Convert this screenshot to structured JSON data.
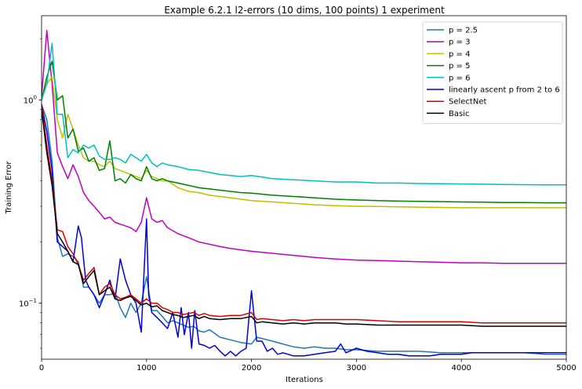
{
  "chart_data": {
    "type": "line",
    "title": "Example 6.2.1   l2-errors (10 dims, 100 points)  1 experiment",
    "xlabel": "Iterations",
    "ylabel": "Training Error",
    "xscale": "linear",
    "yscale": "log",
    "xlim": [
      0,
      5000
    ],
    "ylim": [
      0.053,
      2.6
    ],
    "xticks": [
      0,
      1000,
      2000,
      3000,
      4000,
      5000
    ],
    "xtick_labels": [
      "0",
      "1000",
      "2000",
      "3000",
      "4000",
      "5000"
    ],
    "yticks": [
      1,
      0.1
    ],
    "ytick_labels": [
      {
        "base": "10",
        "exp": "0"
      },
      {
        "base": "10",
        "exp": "−1"
      }
    ],
    "legend_position": "top-right",
    "series": [
      {
        "name": "p = 2.5",
        "color": "#1f77b4",
        "x": [
          0,
          50,
          100,
          150,
          200,
          250,
          300,
          350,
          400,
          450,
          500,
          550,
          600,
          650,
          700,
          750,
          800,
          850,
          900,
          950,
          1000,
          1050,
          1100,
          1150,
          1200,
          1250,
          1300,
          1350,
          1400,
          1450,
          1500,
          1550,
          1600,
          1700,
          1800,
          1900,
          2000,
          2050,
          2100,
          2200,
          2300,
          2400,
          2500,
          2600,
          2700,
          2800,
          2900,
          3000,
          3200,
          3400,
          3600,
          3800,
          4000,
          4200,
          4400,
          4600,
          4800,
          5000
        ],
        "y": [
          0.95,
          0.8,
          0.5,
          0.21,
          0.17,
          0.175,
          0.17,
          0.16,
          0.12,
          0.12,
          0.11,
          0.1,
          0.11,
          0.11,
          0.112,
          0.095,
          0.085,
          0.1,
          0.09,
          0.1,
          0.135,
          0.092,
          0.092,
          0.086,
          0.08,
          0.082,
          0.08,
          0.078,
          0.076,
          0.077,
          0.073,
          0.072,
          0.074,
          0.068,
          0.066,
          0.064,
          0.063,
          0.068,
          0.067,
          0.065,
          0.063,
          0.061,
          0.06,
          0.061,
          0.06,
          0.06,
          0.059,
          0.059,
          0.058,
          0.058,
          0.058,
          0.057,
          0.057,
          0.057,
          0.057,
          0.057,
          0.056,
          0.056
        ]
      },
      {
        "name": "p = 3",
        "color": "#bf00bf",
        "x": [
          0,
          50,
          100,
          150,
          200,
          250,
          300,
          350,
          400,
          450,
          500,
          550,
          600,
          650,
          700,
          750,
          800,
          850,
          900,
          950,
          1000,
          1050,
          1100,
          1150,
          1200,
          1300,
          1400,
          1500,
          1600,
          1700,
          1800,
          1900,
          2000,
          2200,
          2400,
          2600,
          2800,
          3000,
          3200,
          3400,
          3600,
          3800,
          4000,
          4200,
          4400,
          4600,
          4800,
          5000
        ],
        "y": [
          1.05,
          2.2,
          1.2,
          0.55,
          0.47,
          0.41,
          0.48,
          0.42,
          0.35,
          0.32,
          0.3,
          0.28,
          0.26,
          0.265,
          0.25,
          0.245,
          0.24,
          0.235,
          0.225,
          0.25,
          0.33,
          0.26,
          0.25,
          0.255,
          0.235,
          0.22,
          0.21,
          0.2,
          0.195,
          0.19,
          0.186,
          0.183,
          0.18,
          0.176,
          0.172,
          0.168,
          0.165,
          0.163,
          0.162,
          0.161,
          0.16,
          0.159,
          0.158,
          0.158,
          0.157,
          0.157,
          0.157,
          0.157
        ]
      },
      {
        "name": "p = 4",
        "color": "#bfbf00",
        "x": [
          0,
          50,
          100,
          150,
          200,
          250,
          300,
          350,
          400,
          450,
          500,
          550,
          600,
          650,
          700,
          750,
          800,
          850,
          900,
          950,
          1000,
          1050,
          1100,
          1150,
          1200,
          1300,
          1400,
          1500,
          1600,
          1700,
          1800,
          1900,
          2000,
          2200,
          2400,
          2600,
          2800,
          3000,
          3200,
          3400,
          3600,
          3800,
          4000,
          4200,
          4400,
          4600,
          4800,
          5000
        ],
        "y": [
          1.0,
          1.2,
          1.3,
          0.8,
          0.65,
          0.85,
          0.72,
          0.6,
          0.52,
          0.5,
          0.5,
          0.48,
          0.47,
          0.5,
          0.46,
          0.45,
          0.44,
          0.43,
          0.42,
          0.41,
          0.45,
          0.42,
          0.41,
          0.4,
          0.4,
          0.37,
          0.355,
          0.35,
          0.34,
          0.335,
          0.33,
          0.325,
          0.32,
          0.315,
          0.31,
          0.305,
          0.302,
          0.3,
          0.299,
          0.298,
          0.297,
          0.296,
          0.295,
          0.295,
          0.295,
          0.295,
          0.295,
          0.295
        ]
      },
      {
        "name": "p = 5",
        "color": "#008000",
        "x": [
          0,
          50,
          100,
          150,
          200,
          250,
          300,
          350,
          400,
          450,
          500,
          550,
          600,
          650,
          700,
          750,
          800,
          850,
          900,
          950,
          1000,
          1050,
          1100,
          1150,
          1200,
          1300,
          1400,
          1500,
          1600,
          1700,
          1800,
          1900,
          2000,
          2200,
          2400,
          2600,
          2800,
          3000,
          3200,
          3400,
          3600,
          3800,
          4000,
          4200,
          4400,
          4600,
          4800,
          5000
        ],
        "y": [
          1.0,
          1.3,
          1.55,
          1.0,
          1.05,
          0.65,
          0.72,
          0.56,
          0.58,
          0.5,
          0.52,
          0.45,
          0.46,
          0.63,
          0.4,
          0.41,
          0.39,
          0.43,
          0.41,
          0.4,
          0.47,
          0.41,
          0.4,
          0.41,
          0.4,
          0.39,
          0.38,
          0.37,
          0.365,
          0.36,
          0.355,
          0.35,
          0.348,
          0.34,
          0.335,
          0.33,
          0.325,
          0.322,
          0.32,
          0.318,
          0.317,
          0.316,
          0.315,
          0.314,
          0.313,
          0.313,
          0.312,
          0.312
        ]
      },
      {
        "name": "p = 6",
        "color": "#00bfbf",
        "x": [
          0,
          50,
          100,
          150,
          200,
          250,
          300,
          350,
          400,
          450,
          500,
          550,
          600,
          650,
          700,
          750,
          800,
          850,
          900,
          950,
          1000,
          1050,
          1100,
          1150,
          1200,
          1300,
          1400,
          1500,
          1600,
          1700,
          1800,
          1900,
          2000,
          2200,
          2400,
          2600,
          2800,
          3000,
          3200,
          3400,
          3600,
          3800,
          4000,
          4200,
          4400,
          4600,
          4800,
          5000
        ],
        "y": [
          1.0,
          1.2,
          1.9,
          0.85,
          0.85,
          0.52,
          0.57,
          0.55,
          0.6,
          0.58,
          0.6,
          0.53,
          0.51,
          0.51,
          0.52,
          0.51,
          0.49,
          0.54,
          0.52,
          0.5,
          0.54,
          0.49,
          0.47,
          0.49,
          0.48,
          0.47,
          0.455,
          0.45,
          0.44,
          0.43,
          0.425,
          0.42,
          0.425,
          0.41,
          0.405,
          0.4,
          0.395,
          0.395,
          0.39,
          0.39,
          0.388,
          0.387,
          0.386,
          0.385,
          0.384,
          0.383,
          0.382,
          0.382
        ]
      },
      {
        "name": "linearly ascent p from 2 to 6",
        "color": "#0000dd",
        "x": [
          0,
          50,
          100,
          150,
          200,
          250,
          300,
          350,
          380,
          420,
          450,
          500,
          550,
          600,
          650,
          700,
          750,
          800,
          850,
          900,
          950,
          1000,
          1020,
          1050,
          1100,
          1150,
          1200,
          1250,
          1300,
          1330,
          1360,
          1400,
          1430,
          1460,
          1500,
          1550,
          1600,
          1650,
          1700,
          1750,
          1800,
          1850,
          1900,
          1950,
          2000,
          2050,
          2100,
          2150,
          2200,
          2250,
          2300,
          2400,
          2500,
          2600,
          2700,
          2800,
          2850,
          2900,
          3000,
          3100,
          3200,
          3300,
          3400,
          3500,
          3600,
          3700,
          3800,
          3900,
          4000,
          4100,
          4200,
          4400,
          4600,
          4800,
          5000
        ],
        "y": [
          0.95,
          0.7,
          0.45,
          0.2,
          0.19,
          0.18,
          0.16,
          0.24,
          0.21,
          0.13,
          0.12,
          0.11,
          0.095,
          0.11,
          0.13,
          0.105,
          0.165,
          0.13,
          0.11,
          0.1,
          0.072,
          0.26,
          0.11,
          0.09,
          0.085,
          0.08,
          0.075,
          0.09,
          0.068,
          0.095,
          0.07,
          0.09,
          0.06,
          0.092,
          0.063,
          0.062,
          0.06,
          0.062,
          0.058,
          0.055,
          0.058,
          0.055,
          0.058,
          0.06,
          0.115,
          0.065,
          0.065,
          0.058,
          0.06,
          0.056,
          0.057,
          0.055,
          0.055,
          0.056,
          0.057,
          0.058,
          0.063,
          0.057,
          0.06,
          0.058,
          0.057,
          0.056,
          0.056,
          0.055,
          0.055,
          0.055,
          0.056,
          0.056,
          0.056,
          0.057,
          0.057,
          0.057,
          0.057,
          0.057,
          0.057
        ]
      },
      {
        "name": "SelectNet",
        "color": "#dd0000",
        "x": [
          0,
          50,
          100,
          150,
          200,
          250,
          300,
          350,
          400,
          450,
          500,
          550,
          600,
          650,
          700,
          750,
          800,
          850,
          900,
          950,
          1000,
          1050,
          1100,
          1150,
          1200,
          1250,
          1300,
          1350,
          1400,
          1450,
          1500,
          1550,
          1600,
          1700,
          1800,
          1900,
          2000,
          2050,
          2100,
          2200,
          2300,
          2400,
          2500,
          2600,
          2700,
          2800,
          2900,
          3000,
          3200,
          3400,
          3600,
          3800,
          4000,
          4200,
          4400,
          4600,
          4800,
          5000
        ],
        "y": [
          0.95,
          0.6,
          0.4,
          0.23,
          0.225,
          0.19,
          0.175,
          0.155,
          0.13,
          0.14,
          0.15,
          0.11,
          0.12,
          0.125,
          0.11,
          0.105,
          0.107,
          0.11,
          0.105,
          0.1,
          0.105,
          0.1,
          0.1,
          0.095,
          0.093,
          0.09,
          0.09,
          0.088,
          0.089,
          0.09,
          0.087,
          0.089,
          0.087,
          0.086,
          0.087,
          0.087,
          0.09,
          0.083,
          0.084,
          0.083,
          0.082,
          0.083,
          0.082,
          0.083,
          0.083,
          0.083,
          0.083,
          0.083,
          0.082,
          0.081,
          0.081,
          0.081,
          0.081,
          0.08,
          0.08,
          0.08,
          0.08,
          0.08
        ]
      },
      {
        "name": "Basic",
        "color": "#000000",
        "x": [
          0,
          50,
          100,
          150,
          200,
          250,
          300,
          350,
          400,
          450,
          500,
          550,
          600,
          650,
          700,
          750,
          800,
          850,
          900,
          950,
          1000,
          1050,
          1100,
          1150,
          1200,
          1250,
          1300,
          1350,
          1400,
          1450,
          1500,
          1550,
          1600,
          1700,
          1800,
          1900,
          2000,
          2050,
          2100,
          2200,
          2300,
          2400,
          2500,
          2600,
          2700,
          2800,
          2900,
          3000,
          3200,
          3400,
          3600,
          3800,
          4000,
          4200,
          4400,
          4600,
          4800,
          5000
        ],
        "y": [
          0.9,
          0.55,
          0.38,
          0.22,
          0.2,
          0.18,
          0.16,
          0.155,
          0.125,
          0.135,
          0.145,
          0.11,
          0.115,
          0.12,
          0.105,
          0.103,
          0.106,
          0.108,
          0.103,
          0.098,
          0.1,
          0.096,
          0.097,
          0.092,
          0.09,
          0.088,
          0.087,
          0.085,
          0.086,
          0.087,
          0.084,
          0.086,
          0.084,
          0.083,
          0.084,
          0.084,
          0.086,
          0.08,
          0.081,
          0.08,
          0.079,
          0.08,
          0.079,
          0.08,
          0.08,
          0.08,
          0.079,
          0.079,
          0.078,
          0.078,
          0.078,
          0.078,
          0.078,
          0.077,
          0.077,
          0.077,
          0.077,
          0.077
        ]
      }
    ]
  }
}
